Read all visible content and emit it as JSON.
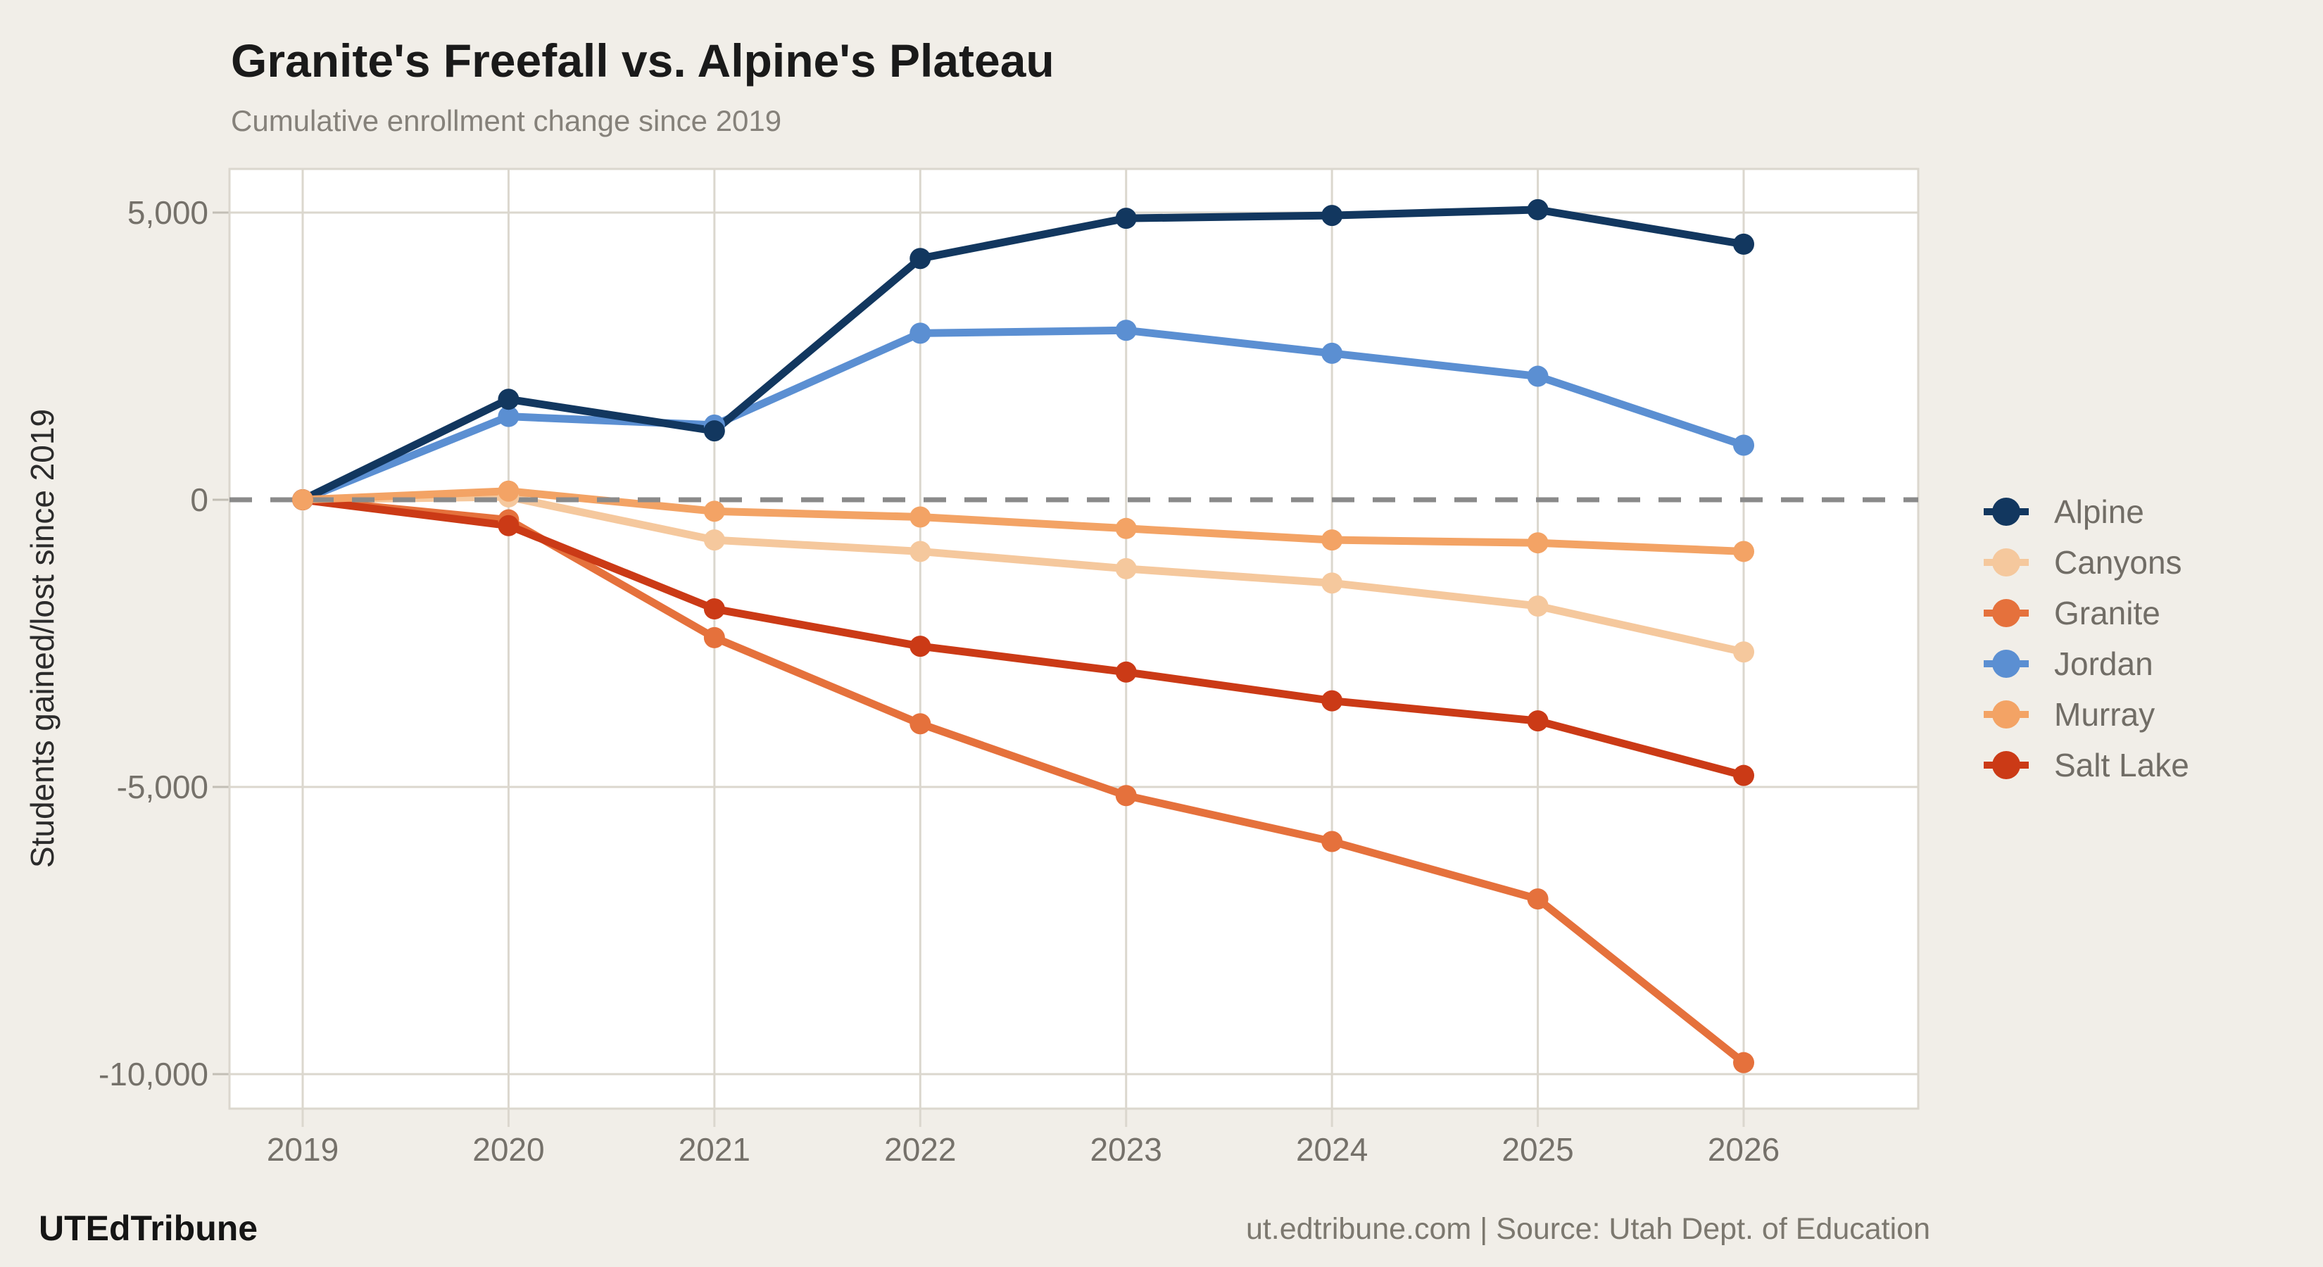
{
  "header": {
    "title": "Granite's Freefall vs. Alpine's Plateau",
    "subtitle": "Cumulative enrollment change since 2019"
  },
  "footer": {
    "brand": "UTEdTribune",
    "attribution": "ut.edtribune.com | Source: Utah Dept. of Education"
  },
  "chart_data": {
    "type": "line",
    "title": "Granite's Freefall vs. Alpine's Plateau",
    "subtitle": "Cumulative enrollment change since 2019",
    "xlabel": "",
    "ylabel": "Students gained/lost since 2019",
    "x": [
      2019,
      2020,
      2021,
      2022,
      2023,
      2024,
      2025,
      2026
    ],
    "x_labels": [
      "2019",
      "2020",
      "2021",
      "2022",
      "2023",
      "2024",
      "2025",
      "2026"
    ],
    "series": [
      {
        "name": "Alpine",
        "color": "#12375F",
        "values": [
          0,
          1750,
          1200,
          4200,
          4900,
          4950,
          5050,
          4450
        ]
      },
      {
        "name": "Canyons",
        "color": "#F5C89D",
        "values": [
          0,
          50,
          -700,
          -900,
          -1200,
          -1450,
          -1850,
          -2650
        ]
      },
      {
        "name": "Granite",
        "color": "#E5713C",
        "values": [
          0,
          -350,
          -2400,
          -3900,
          -5150,
          -5950,
          -6950,
          -9800
        ]
      },
      {
        "name": "Jordan",
        "color": "#5B8FD2",
        "values": [
          0,
          1450,
          1300,
          2900,
          2950,
          2550,
          2150,
          950
        ]
      },
      {
        "name": "Murray",
        "color": "#F3A365",
        "values": [
          0,
          150,
          -200,
          -300,
          -500,
          -700,
          -750,
          -900
        ]
      },
      {
        "name": "Salt Lake",
        "color": "#CB3A16",
        "values": [
          0,
          -450,
          -1900,
          -2550,
          -3000,
          -3500,
          -3850,
          -4800
        ]
      }
    ],
    "draw_order": [
      "Canyons",
      "Granite",
      "Jordan",
      "Alpine",
      "Salt Lake",
      "Murray"
    ],
    "y_ticks": [
      {
        "value": 5000,
        "label": "5,000"
      },
      {
        "value": 0,
        "label": "0"
      },
      {
        "value": -5000,
        "label": "-5,000"
      },
      {
        "value": -10000,
        "label": "-10,000"
      }
    ],
    "ylim": [
      -10600,
      5760
    ],
    "zero_line": true,
    "grid": true,
    "legend_position": "right",
    "colors": {
      "background": "#F1EEE8",
      "panel": "#FFFFFF",
      "gridline": "#DBD7CE",
      "zero_line": "#8A8A8A",
      "tick_text": "#75716A"
    }
  }
}
